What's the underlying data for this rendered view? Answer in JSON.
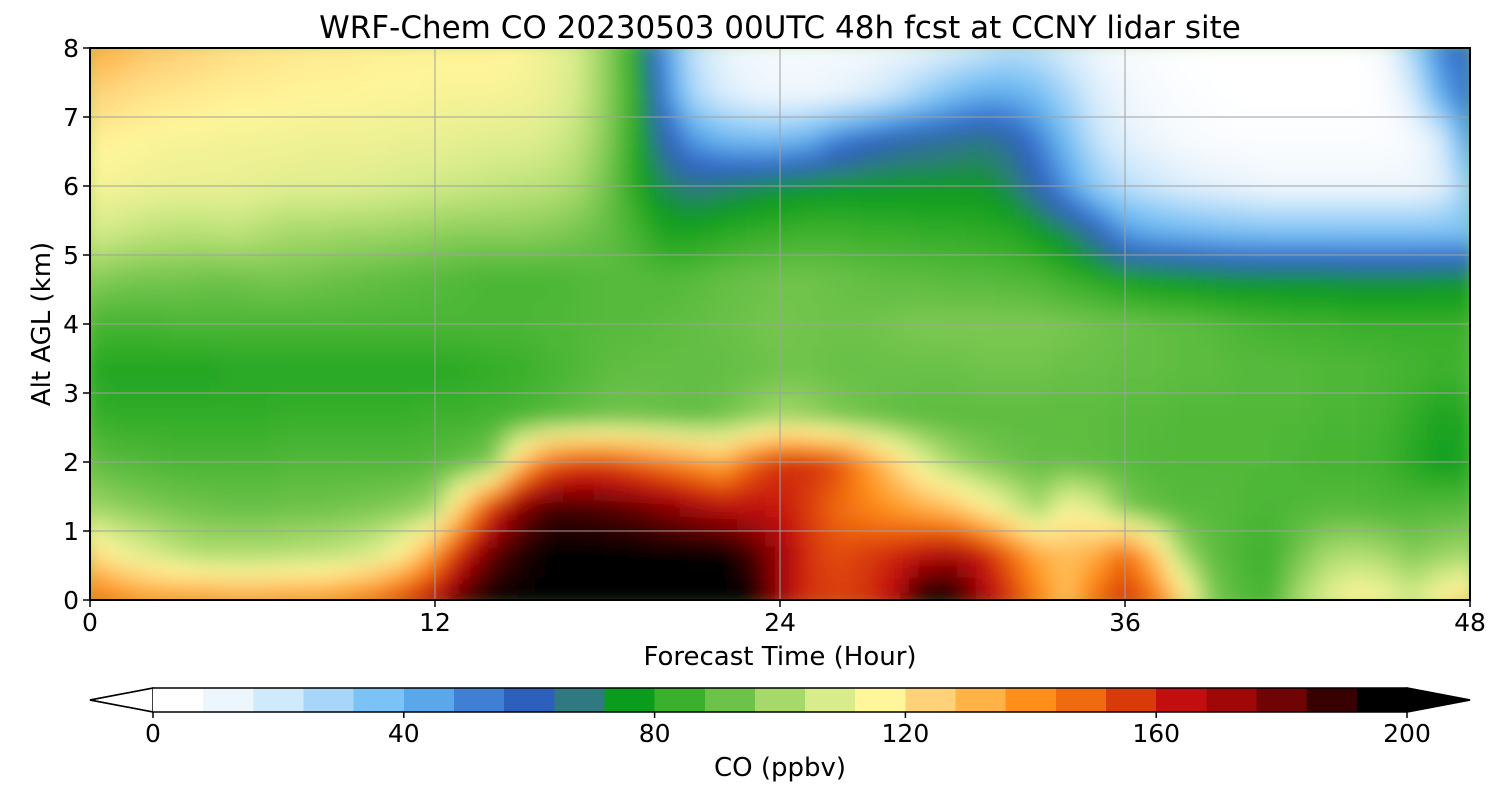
{
  "chart_data": {
    "type": "heatmap",
    "title": "WRF-Chem CO  20230503 00UTC 48h fcst at CCNY lidar site",
    "xlabel": "Forecast Time (Hour)",
    "ylabel": "Alt AGL (km)",
    "xlim": [
      0,
      48
    ],
    "ylim": [
      0,
      8
    ],
    "x_ticks": [
      0,
      12,
      24,
      36,
      48
    ],
    "x_tick_labels": [
      "0",
      "12",
      "24",
      "36",
      "48"
    ],
    "y_ticks": [
      0,
      1,
      2,
      3,
      4,
      5,
      6,
      7,
      8
    ],
    "y_tick_labels": [
      "0",
      "1",
      "2",
      "3",
      "4",
      "5",
      "6",
      "7",
      "8"
    ],
    "grid": true,
    "z": [
      [
        150,
        145,
        140,
        140,
        140,
        138,
        138,
        140,
        140,
        145,
        150,
        160,
        170,
        190,
        200,
        200,
        200,
        200,
        200,
        200,
        200,
        200,
        200,
        200,
        175,
        160,
        158,
        160,
        170,
        200,
        200,
        175,
        160,
        145,
        130,
        150,
        160,
        150,
        125,
        95,
        88,
        85,
        100,
        110,
        118,
        115,
        108,
        118,
        125
      ],
      [
        125,
        115,
        110,
        105,
        102,
        102,
        102,
        103,
        104,
        106,
        110,
        120,
        140,
        165,
        185,
        195,
        200,
        200,
        200,
        200,
        200,
        200,
        200,
        190,
        175,
        160,
        155,
        158,
        162,
        168,
        172,
        165,
        150,
        135,
        130,
        135,
        150,
        130,
        100,
        90,
        86,
        84,
        92,
        100,
        102,
        100,
        95,
        98,
        100
      ],
      [
        100,
        97,
        95,
        93,
        92,
        91,
        91,
        92,
        92,
        93,
        94,
        96,
        100,
        130,
        160,
        180,
        190,
        190,
        188,
        185,
        180,
        175,
        170,
        168,
        165,
        158,
        150,
        145,
        140,
        135,
        130,
        120,
        110,
        100,
        115,
        110,
        95,
        90,
        88,
        88,
        87,
        86,
        87,
        88,
        88,
        87,
        87,
        88,
        88
      ],
      [
        90,
        88,
        87,
        86,
        86,
        86,
        86,
        87,
        87,
        87,
        87,
        87,
        88,
        90,
        95,
        130,
        150,
        155,
        155,
        150,
        145,
        140,
        135,
        150,
        160,
        160,
        155,
        140,
        125,
        110,
        100,
        95,
        92,
        90,
        90,
        89,
        88,
        87,
        87,
        87,
        87,
        87,
        86,
        85,
        85,
        84,
        80,
        76,
        78
      ],
      [
        83,
        82,
        82,
        82,
        82,
        82,
        82,
        83,
        83,
        83,
        83,
        83,
        84,
        84,
        85,
        86,
        88,
        90,
        92,
        92,
        91,
        90,
        92,
        96,
        100,
        98,
        94,
        92,
        90,
        89,
        89,
        89,
        89,
        89,
        89,
        89,
        88,
        88,
        87,
        87,
        87,
        87,
        87,
        86,
        86,
        85,
        82,
        78,
        80
      ],
      [
        80,
        79,
        79,
        79,
        79,
        80,
        80,
        80,
        80,
        80,
        80,
        80,
        80,
        81,
        82,
        83,
        85,
        87,
        89,
        90,
        90,
        90,
        90,
        91,
        92,
        92,
        91,
        91,
        91,
        91,
        91,
        92,
        92,
        92,
        91,
        91,
        90,
        90,
        89,
        89,
        88,
        88,
        88,
        87,
        87,
        86,
        85,
        84,
        85
      ],
      [
        86,
        85,
        85,
        86,
        86,
        86,
        86,
        86,
        86,
        86,
        86,
        86,
        86,
        86,
        86,
        86,
        87,
        87,
        88,
        88,
        89,
        90,
        91,
        92,
        93,
        92,
        92,
        92,
        93,
        94,
        94,
        94,
        94,
        94,
        93,
        92,
        91,
        90,
        89,
        88,
        86,
        85,
        84,
        84,
        83,
        83,
        83,
        83,
        83
      ],
      [
        96,
        94,
        93,
        93,
        92,
        92,
        93,
        93,
        92,
        91,
        90,
        89,
        88,
        87,
        86,
        86,
        86,
        87,
        88,
        88,
        87,
        88,
        90,
        91,
        92,
        92,
        91,
        90,
        89,
        89,
        88,
        88,
        87,
        86,
        83,
        80,
        77,
        75,
        74,
        73,
        72,
        72,
        72,
        72,
        71,
        71,
        71,
        72,
        72
      ],
      [
        108,
        106,
        104,
        103,
        103,
        104,
        102,
        100,
        100,
        99,
        99,
        98,
        97,
        96,
        96,
        96,
        95,
        93,
        90,
        85,
        78,
        78,
        80,
        82,
        83,
        84,
        84,
        83,
        83,
        82,
        82,
        81,
        80,
        76,
        70,
        60,
        45,
        40,
        38,
        36,
        35,
        34,
        34,
        34,
        34,
        34,
        34,
        34,
        34
      ],
      [
        115,
        114,
        113,
        112,
        112,
        112,
        111,
        110,
        110,
        110,
        109,
        108,
        107,
        106,
        105,
        104,
        103,
        100,
        92,
        80,
        70,
        66,
        68,
        70,
        72,
        73,
        74,
        74,
        74,
        74,
        74,
        74,
        70,
        60,
        45,
        30,
        22,
        18,
        14,
        12,
        10,
        8,
        8,
        8,
        8,
        8,
        8,
        12,
        30
      ],
      [
        118,
        117,
        116,
        115,
        115,
        114,
        114,
        114,
        113,
        113,
        113,
        112,
        112,
        111,
        110,
        110,
        108,
        104,
        95,
        80,
        60,
        45,
        38,
        36,
        36,
        40,
        50,
        56,
        60,
        62,
        64,
        66,
        62,
        50,
        35,
        20,
        12,
        8,
        5,
        3,
        2,
        2,
        2,
        2,
        2,
        2,
        5,
        15,
        45
      ],
      [
        125,
        123,
        121,
        120,
        119,
        118,
        118,
        117,
        117,
        117,
        116,
        116,
        115,
        115,
        115,
        114,
        112,
        107,
        96,
        82,
        50,
        25,
        15,
        10,
        8,
        8,
        10,
        14,
        20,
        28,
        35,
        40,
        40,
        35,
        25,
        14,
        8,
        4,
        2,
        1,
        0,
        0,
        0,
        0,
        0,
        2,
        15,
        40,
        55
      ],
      [
        135,
        132,
        128,
        126,
        124,
        122,
        121,
        120,
        119,
        119,
        118,
        118,
        118,
        118,
        118,
        116,
        113,
        108,
        96,
        80,
        45,
        20,
        10,
        6,
        5,
        5,
        5,
        6,
        8,
        10,
        14,
        18,
        22,
        20,
        14,
        8,
        4,
        2,
        1,
        0,
        0,
        0,
        0,
        0,
        0,
        5,
        25,
        50,
        55
      ]
    ],
    "colorbar": {
      "label": "CO  (ppbv)",
      "vmin": 0,
      "vmax": 200,
      "ticks": [
        0,
        40,
        80,
        120,
        160,
        200
      ],
      "tick_labels": [
        "0",
        "40",
        "80",
        "120",
        "160",
        "200"
      ],
      "extend": "both",
      "colors": [
        "#ffffff",
        "#eef6fd",
        "#d0e9fb",
        "#a8d6f8",
        "#7cc3f5",
        "#5aa8ea",
        "#3f7fd4",
        "#2d5fbd",
        "#2f7a80",
        "#0a9c1c",
        "#3bb02c",
        "#6dc24a",
        "#a6d96a",
        "#d8ec8c",
        "#fff59a",
        "#ffd27a",
        "#ffb347",
        "#ff8f1a",
        "#f06a10",
        "#d83a0a",
        "#c20e0e",
        "#a00808",
        "#700303",
        "#380000",
        "#000000"
      ]
    }
  }
}
